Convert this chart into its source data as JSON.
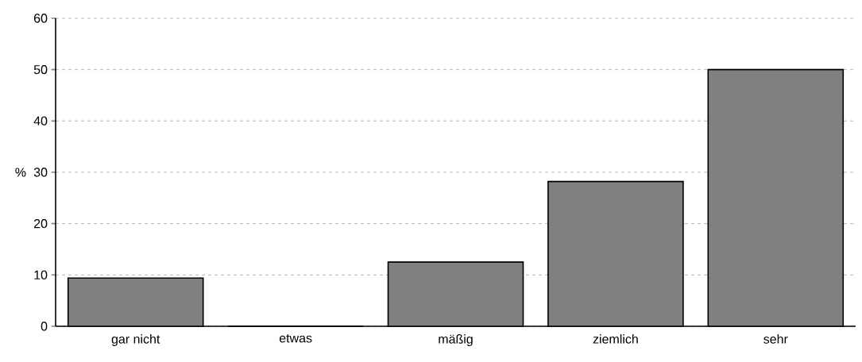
{
  "chart_data": {
    "type": "bar",
    "ylabel": "%",
    "categories": [
      "gar nicht",
      "etwas",
      "mäßig",
      "ziemlich",
      "sehr"
    ],
    "values": [
      9.4,
      0,
      12.5,
      28.2,
      50
    ],
    "color": "#808080",
    "ylim": [
      0,
      60
    ],
    "yticks": [
      0,
      10,
      20,
      30,
      40,
      50,
      60
    ],
    "grid": "y"
  }
}
